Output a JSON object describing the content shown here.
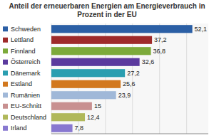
{
  "chart_data": {
    "type": "bar",
    "orientation": "horizontal",
    "title": "Anteil der erneuerbaren Energien am Energieverbrauch in Prozent in der EU",
    "categories": [
      "Schweden",
      "Lettland",
      "Finnland",
      "Österreich",
      "Dänemark",
      "Estland",
      "Rumänien",
      "EU-Schnitt",
      "Deutschland",
      "Irland"
    ],
    "values": [
      52.1,
      37.2,
      36.8,
      32.6,
      27.2,
      25.6,
      23.9,
      15,
      12.4,
      7.8
    ],
    "value_labels": [
      "52,1",
      "37,2",
      "36,8",
      "32,6",
      "27,2",
      "25,6",
      "23,9",
      "15",
      "12,4",
      "7,8"
    ],
    "colors": [
      "#2b5fa5",
      "#9e2a2a",
      "#7caa3a",
      "#5b3a9e",
      "#2a9eb0",
      "#d2781e",
      "#a0b8d8",
      "#c89090",
      "#b0b85a",
      "#8878d0"
    ],
    "xlim": [
      0,
      58
    ],
    "xticks": [
      0,
      10,
      20,
      30,
      40,
      50
    ],
    "grid": true,
    "data_labels": true,
    "tick_labels": "y"
  }
}
